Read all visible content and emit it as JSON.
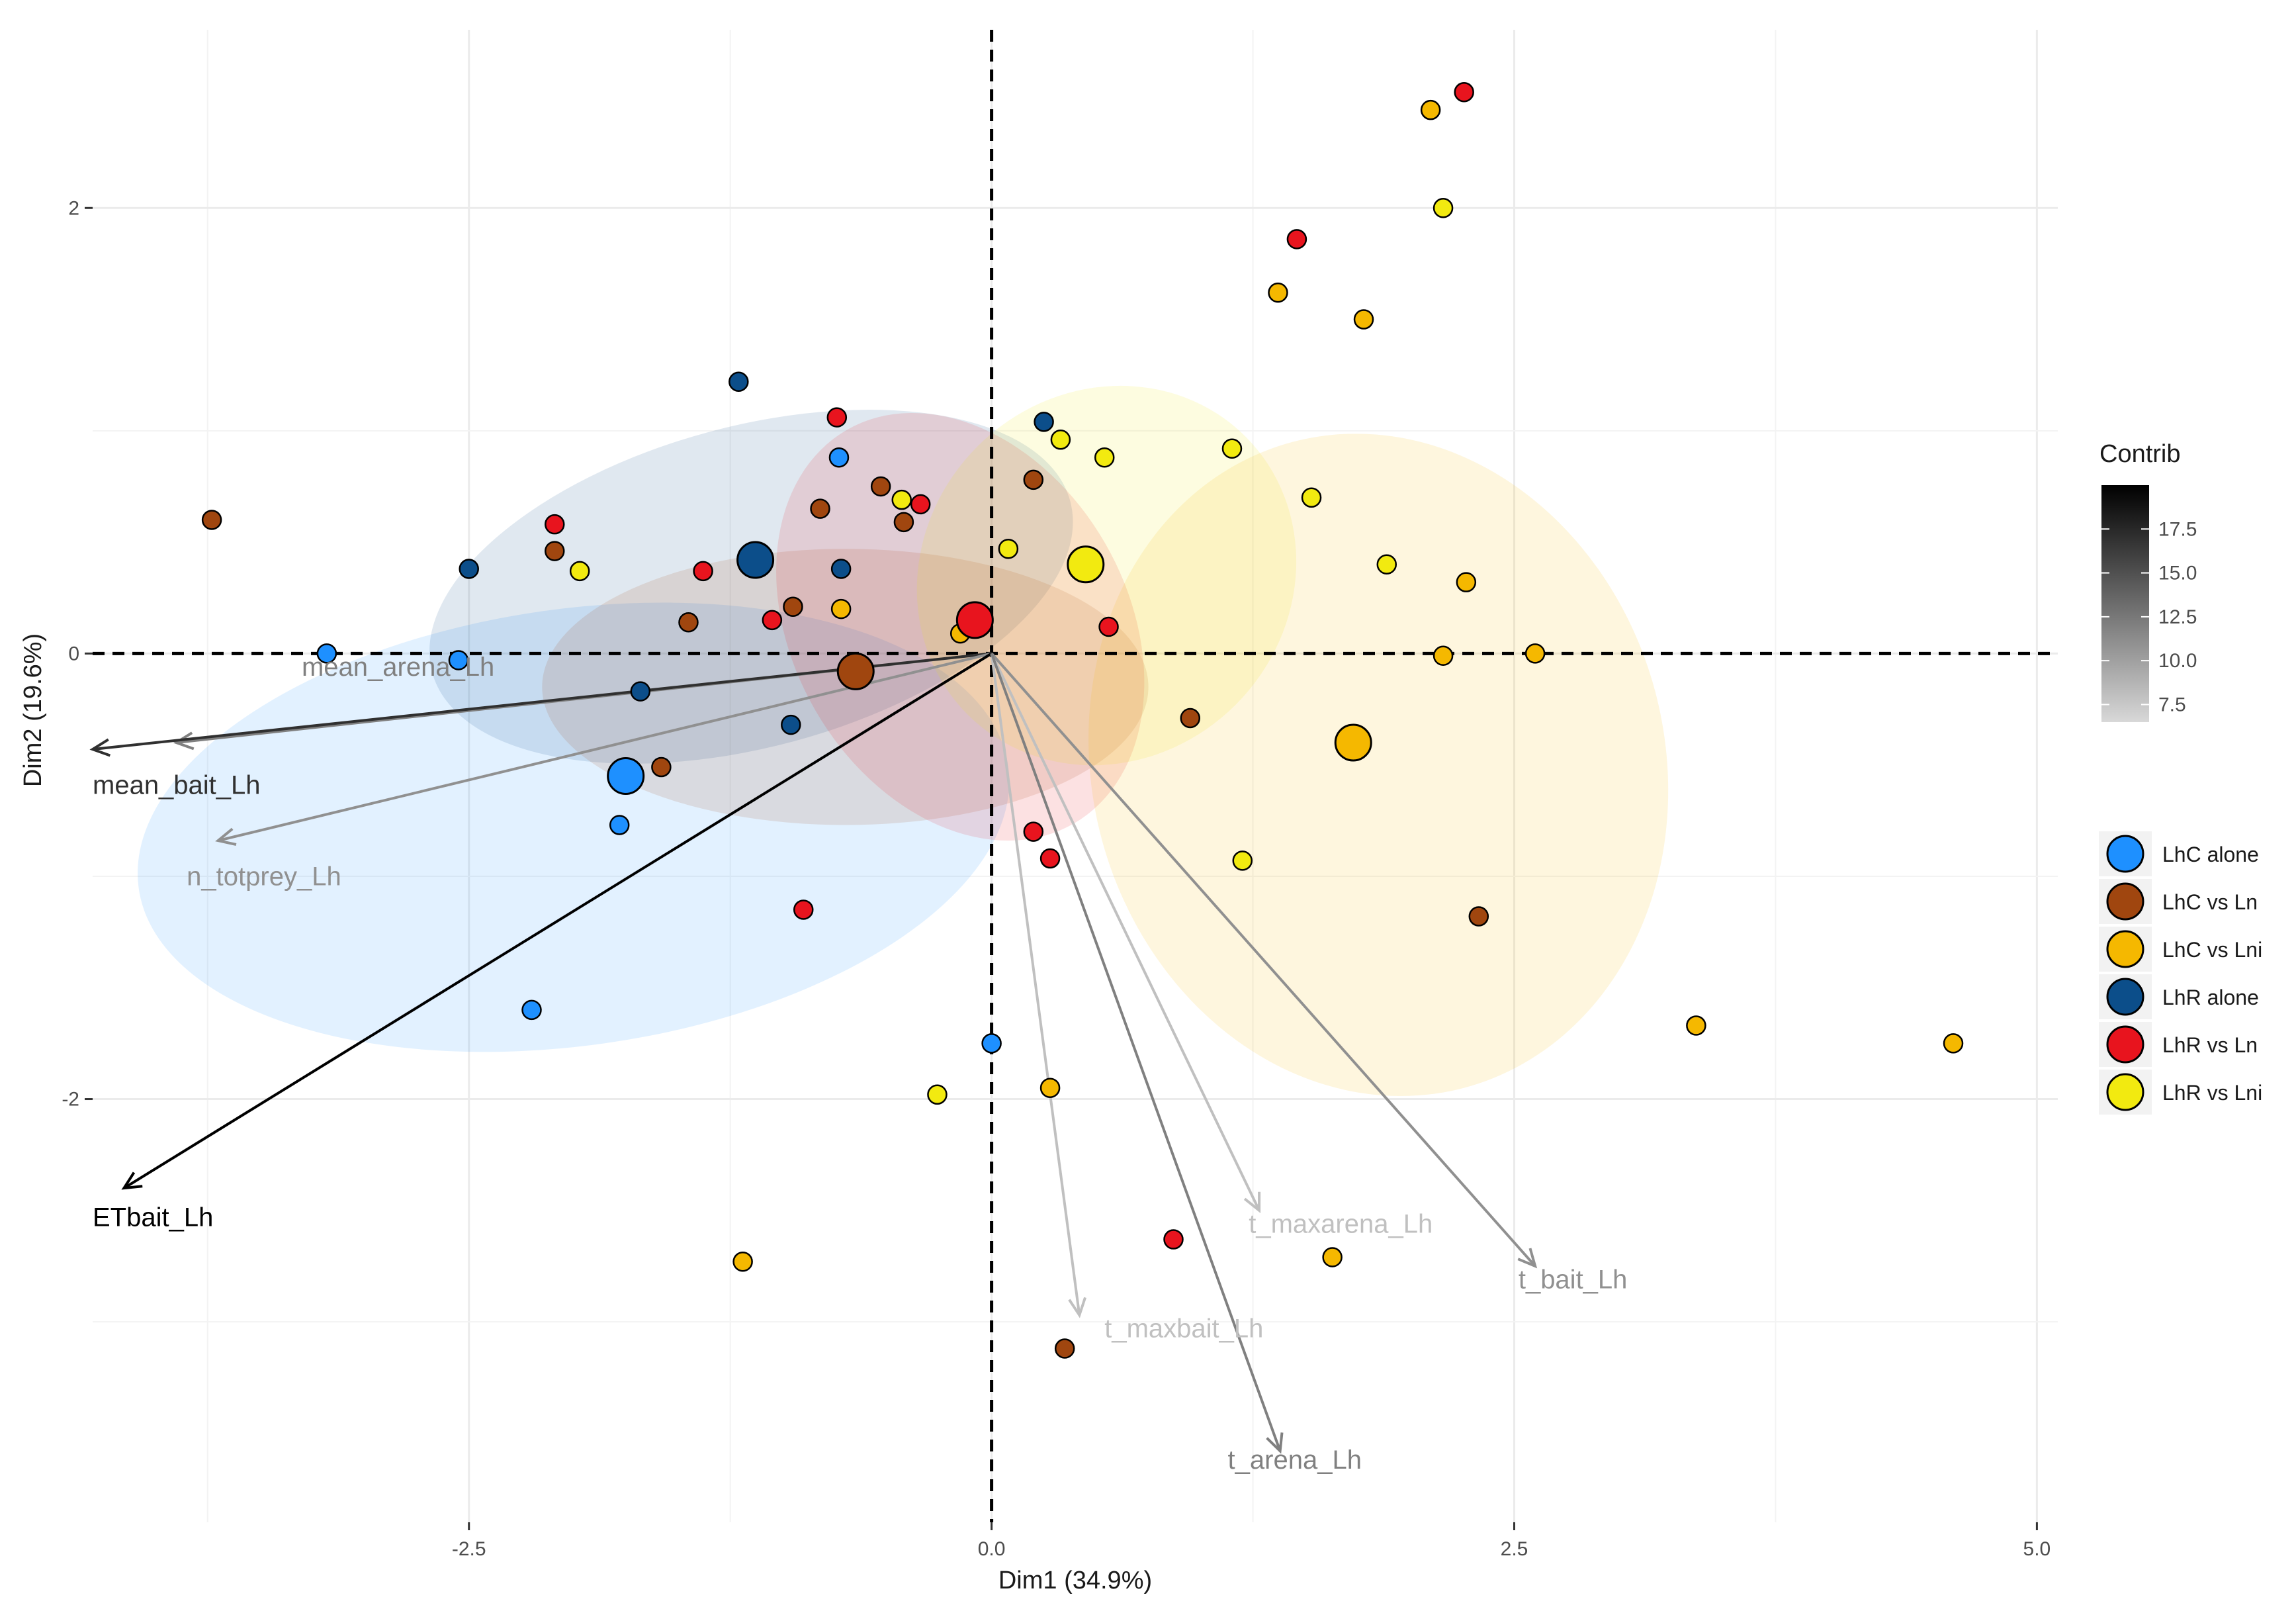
{
  "chart_data": {
    "type": "scatter",
    "subtype": "pca-biplot",
    "x_axis": {
      "label": "Dim1 (34.9%)",
      "range": [
        -4.3,
        5.1
      ],
      "ticks": [
        -2.5,
        0.0,
        2.5,
        5.0
      ],
      "tick_labels": [
        "-2.5",
        "0.0",
        "2.5",
        "5.0"
      ]
    },
    "y_axis": {
      "label": "Dim2 (19.6%)",
      "range": [
        -3.9,
        2.8
      ],
      "ticks": [
        -2,
        0,
        2
      ],
      "tick_labels": [
        "-2",
        "0",
        "2"
      ]
    },
    "grid": true,
    "reference_lines": {
      "x": 0,
      "y": 0,
      "style": "dashed"
    },
    "groups": [
      {
        "name": "LhC alone",
        "color": "#1e90ff"
      },
      {
        "name": "LhC vs Ln",
        "color": "#a0460f"
      },
      {
        "name": "LhC vs Lni",
        "color": "#f5b800"
      },
      {
        "name": "LhR alone",
        "color": "#0c4e8a"
      },
      {
        "name": "LhR vs Ln",
        "color": "#e8141e"
      },
      {
        "name": "LhR vs Lni",
        "color": "#f2ea10"
      }
    ],
    "ellipses": [
      {
        "group": "LhC alone",
        "cx": -2.0,
        "cy": -0.78,
        "rx": 2.1,
        "ry": 0.98,
        "angle_deg": 8
      },
      {
        "group": "LhR alone",
        "cx": -1.15,
        "cy": 0.3,
        "rx": 1.58,
        "ry": 0.72,
        "angle_deg": 15
      },
      {
        "group": "LhC vs Ln",
        "cx": -0.7,
        "cy": -0.15,
        "rx": 1.45,
        "ry": 0.62,
        "angle_deg": 0
      },
      {
        "group": "LhR vs Ln",
        "cx": -0.15,
        "cy": 0.12,
        "rx": 0.8,
        "ry": 1.02,
        "angle_deg": 30
      },
      {
        "group": "LhR vs Lni",
        "cx": 0.55,
        "cy": 0.35,
        "rx": 0.94,
        "ry": 0.82,
        "angle_deg": 45
      },
      {
        "group": "LhC vs Lni",
        "cx": 1.85,
        "cy": -0.5,
        "rx": 1.37,
        "ry": 1.5,
        "angle_deg": 15
      }
    ],
    "centroids": [
      {
        "group": "LhC alone",
        "x": -1.75,
        "y": -0.55
      },
      {
        "group": "LhR alone",
        "x": -1.13,
        "y": 0.42
      },
      {
        "group": "LhC vs Ln",
        "x": -0.65,
        "y": -0.08
      },
      {
        "group": "LhR vs Ln",
        "x": -0.08,
        "y": 0.15
      },
      {
        "group": "LhR vs Lni",
        "x": 0.45,
        "y": 0.4
      },
      {
        "group": "LhC vs Lni",
        "x": 1.73,
        "y": -0.4
      }
    ],
    "points": [
      {
        "group": "LhC alone",
        "x": -3.18,
        "y": 0.0
      },
      {
        "group": "LhC alone",
        "x": -2.55,
        "y": -0.03
      },
      {
        "group": "LhC alone",
        "x": -0.73,
        "y": 0.88
      },
      {
        "group": "LhC alone",
        "x": -1.78,
        "y": -0.77
      },
      {
        "group": "LhC alone",
        "x": -2.2,
        "y": -1.6
      },
      {
        "group": "LhC alone",
        "x": 0.0,
        "y": -1.75
      },
      {
        "group": "LhC vs Ln",
        "x": -3.73,
        "y": 0.6
      },
      {
        "group": "LhC vs Ln",
        "x": -2.09,
        "y": 0.46
      },
      {
        "group": "LhC vs Ln",
        "x": -0.82,
        "y": 0.65
      },
      {
        "group": "LhC vs Ln",
        "x": -0.53,
        "y": 0.75
      },
      {
        "group": "LhC vs Ln",
        "x": -0.42,
        "y": 0.59
      },
      {
        "group": "LhC vs Ln",
        "x": -0.95,
        "y": 0.21
      },
      {
        "group": "LhC vs Ln",
        "x": -1.45,
        "y": 0.14
      },
      {
        "group": "LhC vs Ln",
        "x": -1.58,
        "y": -0.51
      },
      {
        "group": "LhC vs Ln",
        "x": 0.2,
        "y": 0.78
      },
      {
        "group": "LhC vs Ln",
        "x": 0.95,
        "y": -0.29
      },
      {
        "group": "LhC vs Ln",
        "x": 2.33,
        "y": -1.18
      },
      {
        "group": "LhC vs Ln",
        "x": 0.35,
        "y": -3.12
      },
      {
        "group": "LhC vs Lni",
        "x": 2.1,
        "y": 2.44
      },
      {
        "group": "LhC vs Lni",
        "x": 1.37,
        "y": 1.62
      },
      {
        "group": "LhC vs Lni",
        "x": 1.78,
        "y": 1.5
      },
      {
        "group": "LhC vs Lni",
        "x": 2.27,
        "y": 0.32
      },
      {
        "group": "LhC vs Lni",
        "x": 2.16,
        "y": -0.01
      },
      {
        "group": "LhC vs Lni",
        "x": 2.6,
        "y": 0.0
      },
      {
        "group": "LhC vs Lni",
        "x": -0.72,
        "y": 0.2
      },
      {
        "group": "LhC vs Lni",
        "x": -0.15,
        "y": 0.09
      },
      {
        "group": "LhC vs Lni",
        "x": 3.37,
        "y": -1.67
      },
      {
        "group": "LhC vs Lni",
        "x": 4.6,
        "y": -1.75
      },
      {
        "group": "LhC vs Lni",
        "x": 0.28,
        "y": -1.95
      },
      {
        "group": "LhC vs Lni",
        "x": 1.63,
        "y": -2.71
      },
      {
        "group": "LhC vs Lni",
        "x": -1.19,
        "y": -2.73
      },
      {
        "group": "LhR alone",
        "x": -2.5,
        "y": 0.38
      },
      {
        "group": "LhR alone",
        "x": -1.21,
        "y": 1.22
      },
      {
        "group": "LhR alone",
        "x": -0.72,
        "y": 0.38
      },
      {
        "group": "LhR alone",
        "x": -1.68,
        "y": -0.17
      },
      {
        "group": "LhR alone",
        "x": -0.96,
        "y": -0.32
      },
      {
        "group": "LhR alone",
        "x": 0.25,
        "y": 1.04
      },
      {
        "group": "LhR vs Ln",
        "x": 2.26,
        "y": 2.52
      },
      {
        "group": "LhR vs Ln",
        "x": 1.46,
        "y": 1.86
      },
      {
        "group": "LhR vs Ln",
        "x": -0.74,
        "y": 1.06
      },
      {
        "group": "LhR vs Ln",
        "x": -2.09,
        "y": 0.58
      },
      {
        "group": "LhR vs Ln",
        "x": -0.34,
        "y": 0.67
      },
      {
        "group": "LhR vs Ln",
        "x": -1.38,
        "y": 0.37
      },
      {
        "group": "LhR vs Ln",
        "x": -1.05,
        "y": 0.15
      },
      {
        "group": "LhR vs Ln",
        "x": 0.56,
        "y": 0.12
      },
      {
        "group": "LhR vs Ln",
        "x": 0.2,
        "y": -0.8
      },
      {
        "group": "LhR vs Ln",
        "x": 0.28,
        "y": -0.92
      },
      {
        "group": "LhR vs Ln",
        "x": -0.9,
        "y": -1.15
      },
      {
        "group": "LhR vs Ln",
        "x": 0.87,
        "y": -2.63
      },
      {
        "group": "LhR vs Lni",
        "x": 2.16,
        "y": 2.0
      },
      {
        "group": "LhR vs Lni",
        "x": 1.15,
        "y": 0.92
      },
      {
        "group": "LhR vs Lni",
        "x": 0.33,
        "y": 0.96
      },
      {
        "group": "LhR vs Lni",
        "x": 0.54,
        "y": 0.88
      },
      {
        "group": "LhR vs Lni",
        "x": 1.53,
        "y": 0.7
      },
      {
        "group": "LhR vs Lni",
        "x": -0.43,
        "y": 0.69
      },
      {
        "group": "LhR vs Lni",
        "x": -1.97,
        "y": 0.37
      },
      {
        "group": "LhR vs Lni",
        "x": 0.08,
        "y": 0.47
      },
      {
        "group": "LhR vs Lni",
        "x": 1.89,
        "y": 0.4
      },
      {
        "group": "LhR vs Lni",
        "x": 1.2,
        "y": -0.93
      },
      {
        "group": "LhR vs Lni",
        "x": -0.26,
        "y": -1.98
      }
    ],
    "variables": [
      {
        "name": "mean_arena_Lh",
        "x": -3.9,
        "y": -0.4,
        "contrib": 12
      },
      {
        "name": "mean_bait_Lh",
        "x": -4.3,
        "y": -0.43,
        "contrib": 17
      },
      {
        "name": "n_totprey_Lh",
        "x": -3.7,
        "y": -0.84,
        "contrib": 11
      },
      {
        "name": "ETbait_Lh",
        "x": -4.15,
        "y": -2.4,
        "contrib": 20
      },
      {
        "name": "t_maxarena_Lh",
        "x": 1.28,
        "y": -2.5,
        "contrib": 8
      },
      {
        "name": "t_bait_Lh",
        "x": 2.6,
        "y": -2.75,
        "contrib": 11
      },
      {
        "name": "t_maxbait_Lh",
        "x": 0.42,
        "y": -2.97,
        "contrib": 8
      },
      {
        "name": "t_arena_Lh",
        "x": 1.38,
        "y": -3.58,
        "contrib": 12
      }
    ],
    "colorbar": {
      "title": "Contrib",
      "min": 6.5,
      "max": 20.0,
      "ticks": [
        7.5,
        10.0,
        12.5,
        15.0,
        17.5
      ],
      "tick_labels": [
        "7.5",
        "10.0",
        "12.5",
        "15.0",
        "17.5"
      ],
      "low_color": "#d8d8d8",
      "high_color": "#000000"
    },
    "legend": {
      "position": "right",
      "entries": [
        "LhC alone",
        "LhC vs Ln",
        "LhC vs Lni",
        "LhR alone",
        "LhR vs Ln",
        "LhR vs Lni"
      ]
    }
  }
}
